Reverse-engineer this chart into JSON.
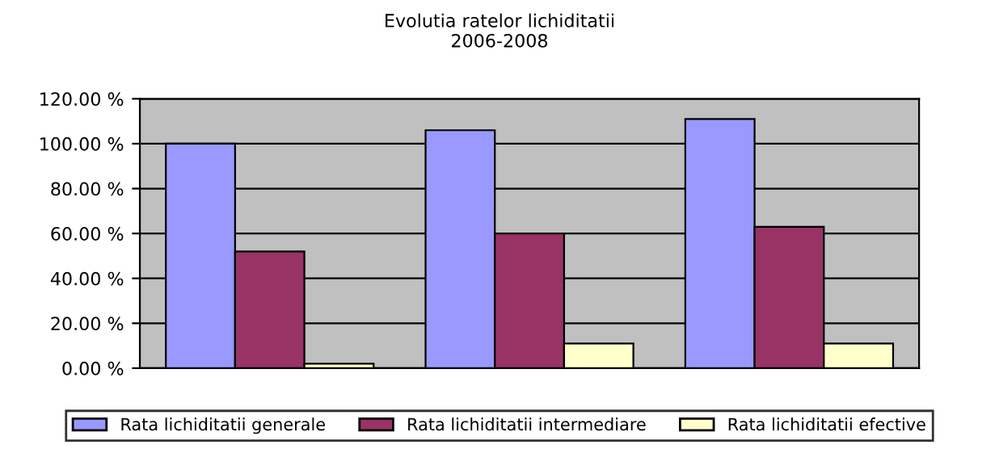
{
  "chart_data": {
    "type": "bar",
    "title": "Evolutia ratelor lichiditatii\n2006-2008",
    "categories": [
      null,
      null,
      null
    ],
    "series": [
      {
        "name": "Rata lichiditatii generale",
        "color": "#9999ff",
        "values": [
          100,
          106,
          111
        ]
      },
      {
        "name": "Rata lichiditatii intermediare",
        "color": "#993366",
        "values": [
          52,
          60,
          63
        ]
      },
      {
        "name": "Rata lichiditatii efective",
        "color": "#ffffcc",
        "values": [
          2,
          11,
          11
        ]
      }
    ],
    "ylim": [
      0,
      120
    ],
    "yticks": [
      {
        "value": 0,
        "label": "0.00 %"
      },
      {
        "value": 20,
        "label": "20.00 %"
      },
      {
        "value": 40,
        "label": "40.00 %"
      },
      {
        "value": 60,
        "label": "60.00 %"
      },
      {
        "value": 80,
        "label": "80.00 %"
      },
      {
        "value": 100,
        "label": "100.00 %"
      },
      {
        "value": 120,
        "label": "120.00 %"
      }
    ],
    "grid": "y",
    "legend": "bottom"
  }
}
